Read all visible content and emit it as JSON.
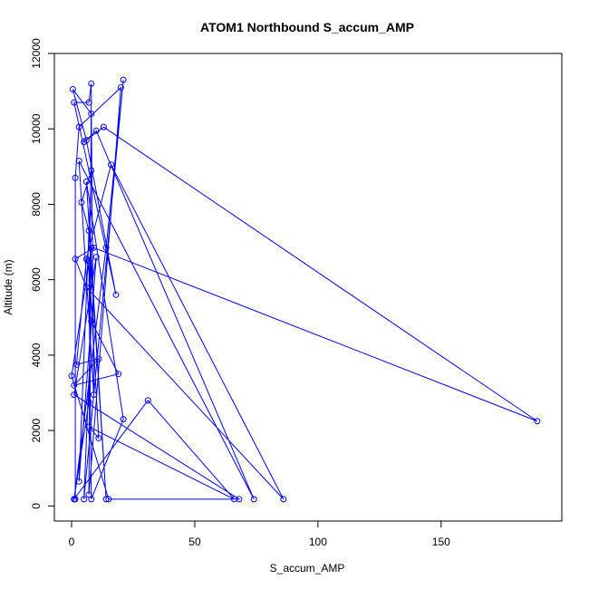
{
  "chart_data": {
    "type": "line",
    "title": "ATOM1 Northbound S_accum_AMP",
    "xlabel": "S_accum_AMP",
    "ylabel": "Altitude (m)",
    "xlim": [
      -7,
      199
    ],
    "ylim": [
      -400,
      12000
    ],
    "xticks": [
      0,
      50,
      100,
      150
    ],
    "yticks": [
      0,
      2000,
      4000,
      6000,
      8000,
      10000,
      12000
    ],
    "grid": false,
    "legend": "none",
    "color": "#0000ff",
    "marker": "open-circle",
    "series": [
      {
        "values": [
          [
            1.5,
            180
          ],
          [
            1.5,
            8700
          ],
          [
            3,
            10050
          ],
          [
            20,
            11100
          ],
          [
            7,
            300
          ],
          [
            8,
            11200
          ],
          [
            7,
            10700
          ],
          [
            1,
            10700
          ],
          [
            18,
            5600
          ],
          [
            6,
            9700
          ],
          [
            0.5,
            11050
          ],
          [
            8,
            10400
          ],
          [
            9,
            2950
          ],
          [
            3,
            9150
          ],
          [
            74,
            180
          ],
          [
            10,
            9950
          ],
          [
            5,
            9650
          ],
          [
            13,
            10050
          ],
          [
            189,
            2250
          ],
          [
            9,
            6850
          ],
          [
            1.5,
            6550
          ],
          [
            6,
            5800
          ],
          [
            86,
            180
          ],
          [
            16,
            9050
          ],
          [
            6,
            6550
          ],
          [
            2,
            3750
          ],
          [
            11,
            3900
          ],
          [
            1,
            3200
          ],
          [
            19,
            3500
          ],
          [
            8,
            4900
          ],
          [
            5,
            180
          ],
          [
            21,
            11300
          ],
          [
            14,
            6850
          ],
          [
            1,
            180
          ],
          [
            31,
            2800
          ],
          [
            66,
            180
          ],
          [
            7,
            2100
          ],
          [
            11,
            1800
          ],
          [
            7,
            6500
          ],
          [
            8,
            180
          ],
          [
            21,
            2300
          ],
          [
            6,
            8600
          ],
          [
            14,
            180
          ],
          [
            7,
            7300
          ],
          [
            4,
            8050
          ],
          [
            8,
            8900
          ],
          [
            3,
            650
          ],
          [
            10,
            6600
          ],
          [
            1,
            2950
          ],
          [
            68,
            180
          ],
          [
            15,
            180
          ],
          [
            0,
            3450
          ],
          [
            8,
            6850
          ],
          [
            7,
            2750
          ],
          [
            1,
            180
          ]
        ]
      }
    ]
  }
}
